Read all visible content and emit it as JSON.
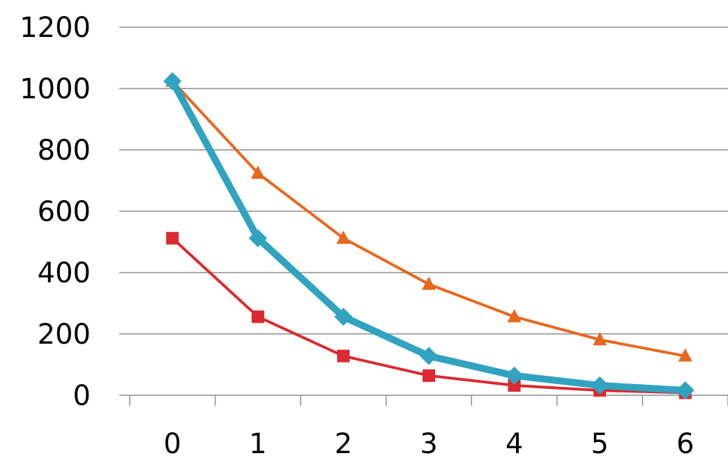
{
  "chart_data": {
    "type": "line",
    "title": "",
    "xlabel": "",
    "ylabel": "",
    "categories": [
      "0",
      "1",
      "2",
      "3",
      "4",
      "5",
      "6"
    ],
    "ylim": [
      0,
      1200
    ],
    "yticks": [
      "0",
      "200",
      "400",
      "600",
      "800",
      "1000",
      "1200"
    ],
    "grid": true,
    "legend": "none",
    "series": [
      {
        "values": [
          1024,
          512,
          256,
          128,
          64,
          32,
          16
        ],
        "color": "#31a3c1",
        "marker": "diamond"
      },
      {
        "values": [
          512,
          256,
          128,
          64,
          32,
          16,
          8
        ],
        "color": "#da2a30",
        "marker": "square"
      },
      {
        "values": [
          1024,
          724,
          512,
          362,
          256,
          181,
          128
        ],
        "color": "#e8671e",
        "marker": "triangle"
      }
    ]
  }
}
